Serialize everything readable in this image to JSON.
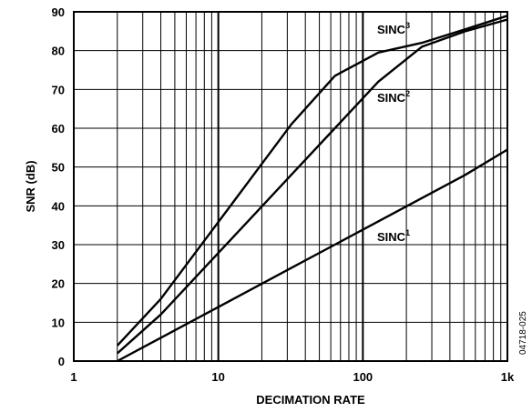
{
  "chart_data": {
    "type": "line",
    "xscale": "log",
    "xlabel": "DECIMATION RATE",
    "ylabel": "SNR (dB)",
    "xlim": [
      1,
      1000
    ],
    "ylim": [
      0,
      90
    ],
    "x_ticks": [
      "1",
      "10",
      "100",
      "1k"
    ],
    "y_ticks": [
      "0",
      "10",
      "20",
      "30",
      "40",
      "50",
      "60",
      "70",
      "80",
      "90"
    ],
    "grid": true,
    "figure_id": "04718-025",
    "series": [
      {
        "name": "SINC1",
        "label_base": "SINC",
        "label_sup": "1",
        "x": [
          2,
          4,
          8,
          16,
          32,
          64,
          128,
          256,
          512,
          1000
        ],
        "y": [
          0,
          6,
          12,
          18,
          24,
          30,
          36,
          42,
          48,
          54.5
        ]
      },
      {
        "name": "SINC2",
        "label_base": "SINC",
        "label_sup": "2",
        "x": [
          2,
          4,
          8,
          16,
          32,
          64,
          128,
          256,
          512,
          1000
        ],
        "y": [
          2,
          12,
          24,
          36,
          48,
          60,
          72,
          81,
          85,
          88
        ]
      },
      {
        "name": "SINC3",
        "label_base": "SINC",
        "label_sup": "3",
        "x": [
          2,
          4,
          8,
          16,
          32,
          64,
          128,
          256,
          512,
          1000
        ],
        "y": [
          4,
          16,
          31,
          46,
          61,
          73.5,
          79.5,
          82,
          85.5,
          89
        ]
      }
    ]
  }
}
